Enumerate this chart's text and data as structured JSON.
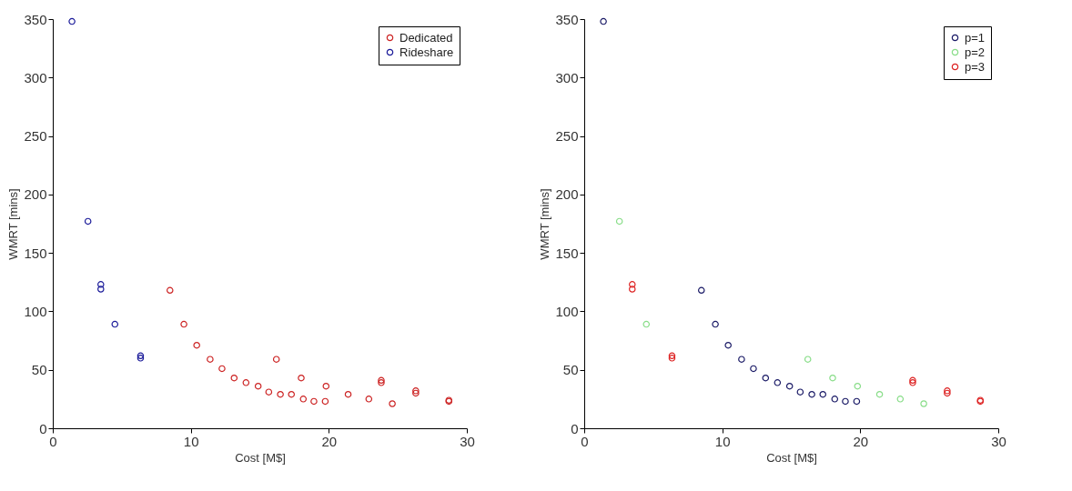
{
  "chart_data": [
    {
      "type": "scatter",
      "xlabel": "Cost [M$]",
      "ylabel": "WMRT [mins]",
      "xlim": [
        0,
        30
      ],
      "xticks": [
        0,
        10,
        20,
        30
      ],
      "ylim": [
        0,
        350
      ],
      "yticks": [
        0,
        50,
        100,
        150,
        200,
        250,
        300,
        350
      ],
      "grid": false,
      "legend": "top right",
      "marker": "circle",
      "series": [
        {
          "name": "Dedicated",
          "color": "#cc2222",
          "x": [
            8.49,
            9.5,
            10.43,
            11.4,
            12.26,
            13.14,
            14.0,
            14.88,
            15.65,
            16.49,
            17.29,
            18.15,
            18.92,
            19.74,
            16.2,
            18.0,
            19.8,
            21.4,
            22.9,
            24.6,
            23.8,
            23.8,
            26.3,
            26.3,
            28.7,
            28.7
          ],
          "values": [
            118,
            89,
            71,
            59,
            51,
            43,
            39,
            36,
            31,
            29,
            29,
            25,
            23,
            23,
            59,
            43,
            36,
            29,
            25,
            21,
            41,
            39,
            32,
            30,
            24,
            23
          ]
        },
        {
          "name": "Rideshare",
          "color": "#1a1a99",
          "x": [
            1.39,
            2.55,
            3.48,
            3.48,
            4.5,
            6.36,
            6.36
          ],
          "values": [
            348,
            177,
            123,
            119,
            89,
            62,
            60
          ]
        }
      ]
    },
    {
      "type": "scatter",
      "xlabel": "Cost [M$]",
      "ylabel": "WMRT [mins]",
      "xlim": [
        0,
        30
      ],
      "xticks": [
        0,
        10,
        20,
        30
      ],
      "ylim": [
        0,
        350
      ],
      "yticks": [
        0,
        50,
        100,
        150,
        200,
        250,
        300,
        350
      ],
      "grid": false,
      "legend": "top right",
      "marker": "circle",
      "series": [
        {
          "name": "p=1",
          "color": "#1a1a66",
          "x": [
            1.39,
            8.49,
            9.5,
            10.43,
            11.4,
            12.26,
            13.14,
            14.0,
            14.88,
            15.65,
            16.49,
            17.29,
            18.15,
            18.92,
            19.74
          ],
          "values": [
            348,
            118,
            89,
            71,
            59,
            51,
            43,
            39,
            36,
            31,
            29,
            29,
            25,
            23,
            23
          ]
        },
        {
          "name": "p=2",
          "color": "#88dd88",
          "x": [
            2.55,
            4.5,
            16.2,
            18.0,
            19.8,
            21.4,
            22.9,
            24.6
          ],
          "values": [
            177,
            89,
            59,
            43,
            36,
            29,
            25,
            21
          ]
        },
        {
          "name": "p=3",
          "color": "#dd2222",
          "x": [
            3.48,
            3.48,
            6.36,
            6.36,
            23.8,
            23.8,
            26.3,
            26.3,
            28.7,
            28.7
          ],
          "values": [
            123,
            119,
            62,
            60,
            41,
            39,
            32,
            30,
            24,
            23
          ]
        }
      ]
    }
  ]
}
